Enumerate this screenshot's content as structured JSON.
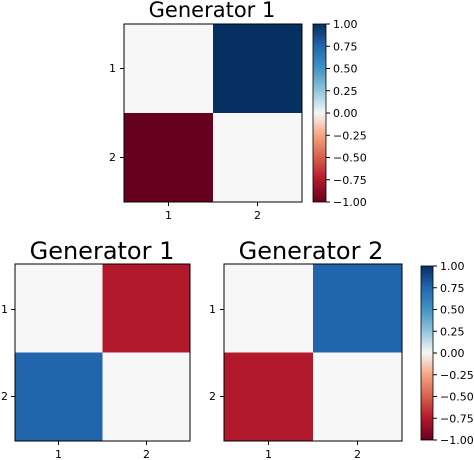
{
  "colormap": {
    "name": "RdBu",
    "stops": [
      {
        "v": -1.0,
        "color": "#67001f"
      },
      {
        "v": -0.75,
        "color": "#b2182b"
      },
      {
        "v": -0.5,
        "color": "#d6604d"
      },
      {
        "v": -0.25,
        "color": "#f4a582"
      },
      {
        "v": 0.0,
        "color": "#f7f7f7"
      },
      {
        "v": 0.25,
        "color": "#92c5de"
      },
      {
        "v": 0.5,
        "color": "#4393c3"
      },
      {
        "v": 0.75,
        "color": "#2166ac"
      },
      {
        "v": 1.0,
        "color": "#053061"
      }
    ]
  },
  "chart_data": [
    {
      "type": "heatmap",
      "title": "Generator 1",
      "x_ticks": [
        "1",
        "2"
      ],
      "y_ticks": [
        "1",
        "2"
      ],
      "values": [
        [
          0,
          1
        ],
        [
          -1,
          0
        ]
      ],
      "colorbar": {
        "range": [
          -1,
          1
        ],
        "ticks": [
          "1.00",
          "0.75",
          "0.50",
          "0.25",
          "0.00",
          "−0.25",
          "−0.50",
          "−0.75",
          "−1.00"
        ]
      }
    },
    {
      "type": "heatmap",
      "title": "Generator 1",
      "x_ticks": [
        "1",
        "2"
      ],
      "y_ticks": [
        "1",
        "2"
      ],
      "values": [
        [
          0,
          -0.75
        ],
        [
          0.75,
          0
        ]
      ]
    },
    {
      "type": "heatmap",
      "title": "Generator 2",
      "x_ticks": [
        "1",
        "2"
      ],
      "y_ticks": [
        "1",
        "2"
      ],
      "values": [
        [
          0,
          0.75
        ],
        [
          -0.75,
          0
        ]
      ],
      "colorbar": {
        "range": [
          -1,
          1
        ],
        "ticks": [
          "1.00",
          "0.75",
          "0.50",
          "0.25",
          "0.00",
          "−0.25",
          "−0.50",
          "−0.75",
          "−1.00"
        ]
      }
    }
  ]
}
